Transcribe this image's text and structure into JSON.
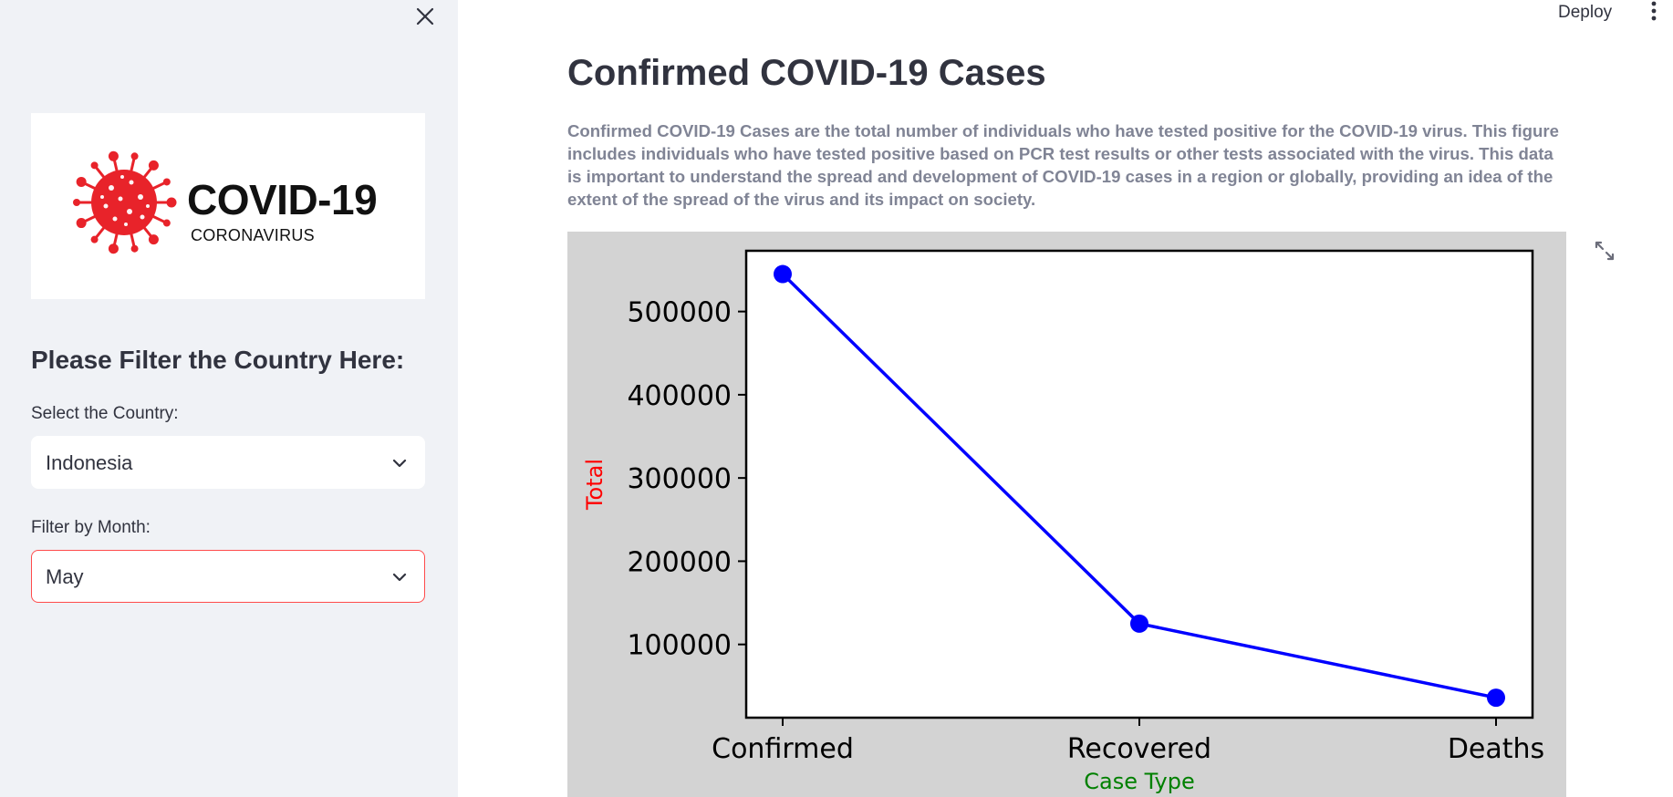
{
  "toolbar": {
    "deploy_label": "Deploy"
  },
  "sidebar": {
    "logo": {
      "title": "COVID-19",
      "subtitle": "CORONAVIRUS"
    },
    "heading": "Please Filter the Country Here:",
    "country": {
      "label": "Select the Country:",
      "value": "Indonesia"
    },
    "month": {
      "label": "Filter by Month:",
      "value": "May"
    }
  },
  "main": {
    "title": "Confirmed COVID-19 Cases",
    "description": "Confirmed COVID-19 Cases are the total number of individuals who have tested positive for the COVID-19 virus. This figure includes individuals who have tested positive based on PCR test results or other tests associated with the virus. This data is important to understand the spread and development of COVID-19 cases in a region or globally, providing an idea of the extent of the spread of the virus and its impact on society."
  },
  "colors": {
    "sidebar_bg": "#f0f2f6",
    "accent": "#ff4b4b",
    "chart_bg": "#d3d3d3",
    "line": "#0000ff",
    "ylabel": "#ff0000",
    "xlabel": "#008000"
  },
  "icons": {
    "close": "close-icon",
    "chevron": "chevron-down-icon",
    "menu": "more-vertical-icon",
    "expand": "fullscreen-icon",
    "virus": "virus-icon"
  },
  "chart_data": {
    "type": "line",
    "categories": [
      "Confirmed",
      "Recovered",
      "Deaths"
    ],
    "values": [
      545000,
      125000,
      36000
    ],
    "xlabel": "Case Type",
    "ylabel": "Total",
    "yticks": [
      100000,
      200000,
      300000,
      400000,
      500000
    ],
    "ylim": [
      12000,
      573000
    ],
    "grid": false,
    "marker": "circle"
  }
}
